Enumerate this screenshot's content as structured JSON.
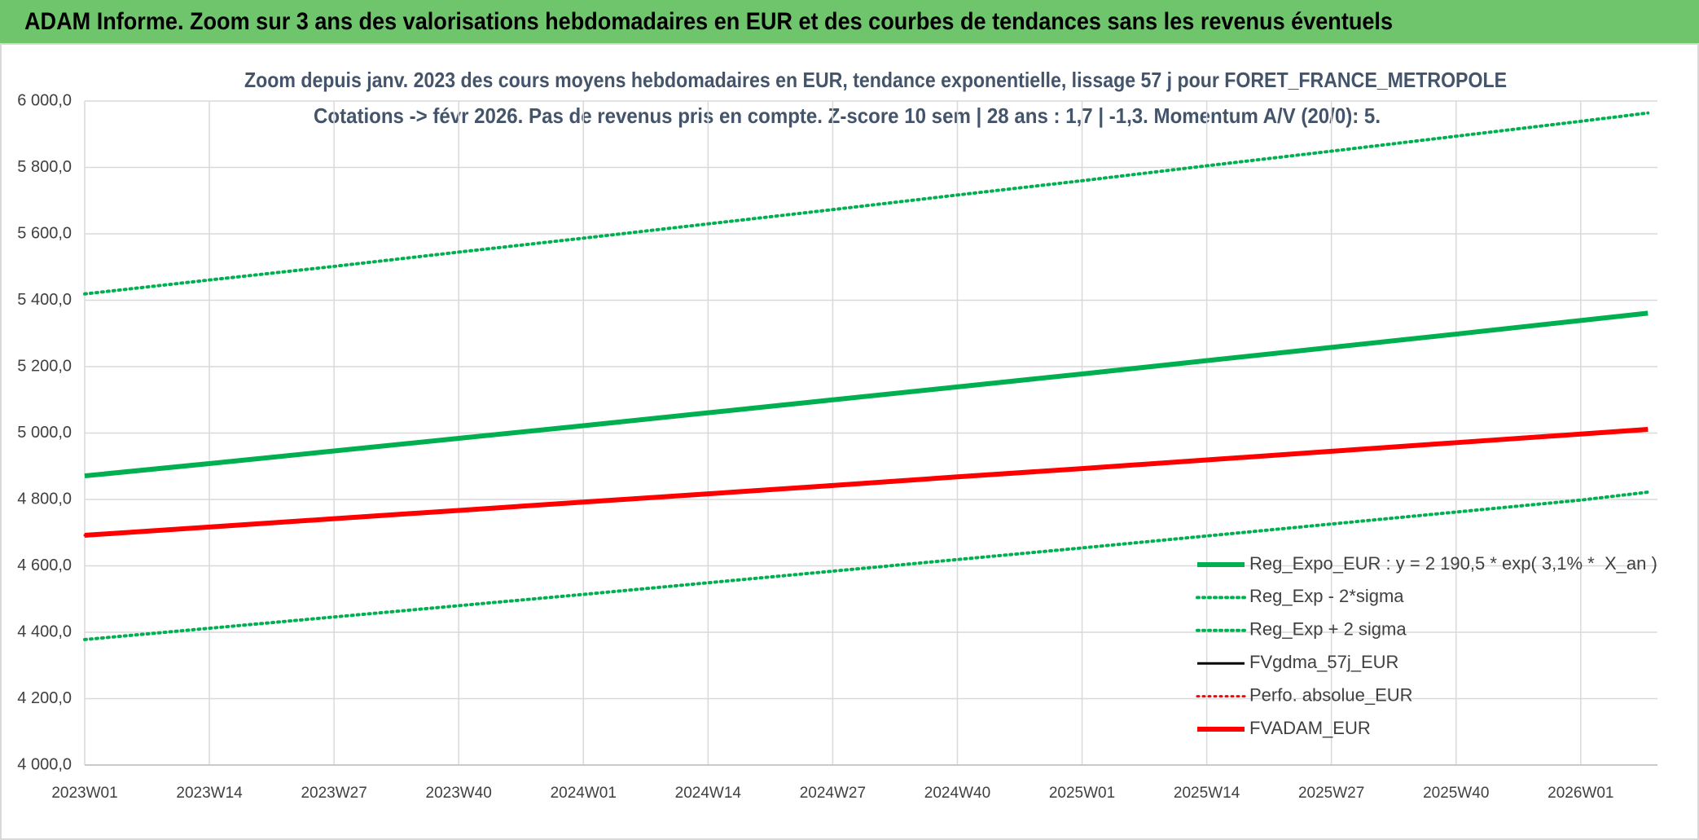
{
  "header": {
    "title": "ADAM Informe. Zoom sur 3 ans des valorisations hebdomadaires en EUR et des courbes de tendances sans les revenus éventuels"
  },
  "chart_data": {
    "type": "line",
    "title": "Zoom depuis janv. 2023 des cours moyens hebdomadaires en EUR, tendance exponentielle, lissage 57 j pour FORET_FRANCE_METROPOLE",
    "subtitle": "Cotations -> févr 2026. Pas de revenus pris en compte. Z-score 10 sem | 28 ans : 1,7 | -1,3. Momentum A/V (20/0): 5.",
    "x": [
      0,
      13,
      26,
      39,
      52,
      65,
      78,
      91,
      104,
      117,
      130,
      143,
      156,
      163
    ],
    "xlim": [
      0,
      164
    ],
    "xticks": [
      {
        "value": 0,
        "label": "2023W01"
      },
      {
        "value": 13,
        "label": "2023W14"
      },
      {
        "value": 26,
        "label": "2023W27"
      },
      {
        "value": 39,
        "label": "2023W40"
      },
      {
        "value": 52,
        "label": "2024W01"
      },
      {
        "value": 65,
        "label": "2024W14"
      },
      {
        "value": 78,
        "label": "2024W27"
      },
      {
        "value": 91,
        "label": "2024W40"
      },
      {
        "value": 104,
        "label": "2025W01"
      },
      {
        "value": 117,
        "label": "2025W14"
      },
      {
        "value": 130,
        "label": "2025W27"
      },
      {
        "value": 143,
        "label": "2025W40"
      },
      {
        "value": 156,
        "label": "2026W01"
      }
    ],
    "ylim": [
      4000,
      6000
    ],
    "yticks": [
      {
        "value": 4000,
        "label": "4 000,0"
      },
      {
        "value": 4200,
        "label": "4 200,0"
      },
      {
        "value": 4400,
        "label": "4 400,0"
      },
      {
        "value": 4600,
        "label": "4 600,0"
      },
      {
        "value": 4800,
        "label": "4 800,0"
      },
      {
        "value": 5000,
        "label": "5 000,0"
      },
      {
        "value": 5200,
        "label": "5 200,0"
      },
      {
        "value": 5400,
        "label": "5 400,0"
      },
      {
        "value": 5600,
        "label": "5 600,0"
      },
      {
        "value": 5800,
        "label": "5 800,0"
      },
      {
        "value": 6000,
        "label": "6 000,0"
      }
    ],
    "grid": true,
    "legend": "right",
    "series": [
      {
        "name": "Reg_Expo_EUR : y = 2 190,5 * exp( 3,1% *  X_an )",
        "color": "#00b050",
        "dash": "solid",
        "width": 6,
        "values": [
          4871,
          4908,
          4946,
          4984,
          5022,
          5061,
          5100,
          5139,
          5178,
          5218,
          5258,
          5298,
          5339,
          5361
        ]
      },
      {
        "name": "Reg_Exp - 2*sigma",
        "color": "#00b050",
        "dash": "dotted",
        "width": 4,
        "values": [
          4378,
          4412,
          4446,
          4480,
          4514,
          4549,
          4584,
          4619,
          4654,
          4690,
          4726,
          4762,
          4798,
          4822
        ]
      },
      {
        "name": "Reg_Exp + 2 sigma",
        "color": "#00b050",
        "dash": "dotted",
        "width": 4,
        "values": [
          5419,
          5461,
          5502,
          5545,
          5587,
          5630,
          5673,
          5717,
          5760,
          5805,
          5849,
          5894,
          5939,
          5964
        ]
      },
      {
        "name": "FVgdma_57j_EUR",
        "color": "#000000",
        "dash": "solid",
        "width": 3,
        "values": [
          4692,
          4717,
          4742,
          4767,
          4792,
          4817,
          4842,
          4868,
          4893,
          4919,
          4945,
          4971,
          4997,
          5011
        ]
      },
      {
        "name": "Perfo. absolue_EUR",
        "color": "#ff0000",
        "dash": "dotted",
        "width": 3,
        "values": [
          4692,
          4717,
          4742,
          4767,
          4792,
          4817,
          4842,
          4868,
          4893,
          4919,
          4945,
          4971,
          4997,
          5011
        ]
      },
      {
        "name": "FVADAM_EUR",
        "color": "#ff0000",
        "dash": "solid",
        "width": 6,
        "values": [
          4692,
          4717,
          4742,
          4767,
          4792,
          4817,
          4842,
          4868,
          4893,
          4919,
          4945,
          4971,
          4997,
          5011
        ]
      }
    ]
  }
}
